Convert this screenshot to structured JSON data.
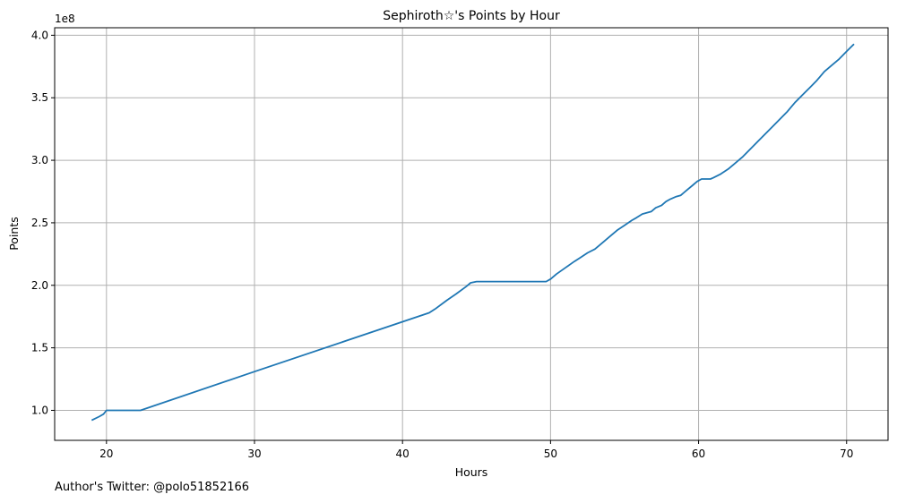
{
  "chart_data": {
    "type": "line",
    "title": "Sephiroth☆'s Points by Hour",
    "xlabel": "Hours",
    "ylabel": "Points",
    "y_offset_label": "1e8",
    "xlim": [
      16.5,
      72.8
    ],
    "ylim": [
      0.76,
      4.06
    ],
    "x_ticks": [
      20,
      30,
      40,
      50,
      60,
      70
    ],
    "y_ticks": [
      1.0,
      1.5,
      2.0,
      2.5,
      3.0,
      3.5,
      4.0
    ],
    "y_tick_labels": [
      "1.0",
      "1.5",
      "2.0",
      "2.5",
      "3.0",
      "3.5",
      "4.0"
    ],
    "grid": true,
    "line_color": "#1f77b4",
    "series": [
      {
        "x": [
          19.0,
          19.5,
          19.8,
          20.0,
          22.3,
          30.0,
          41.8,
          42.2,
          43.0,
          43.6,
          44.3,
          44.6,
          45.0,
          46.0,
          48.0,
          49.7,
          50.0,
          50.4,
          51.0,
          51.6,
          52.0,
          52.5,
          53.0,
          53.5,
          54.0,
          54.5,
          55.0,
          55.5,
          55.8,
          56.2,
          56.5,
          56.8,
          57.1,
          57.5,
          57.8,
          58.1,
          58.5,
          58.8,
          59.2,
          59.6,
          59.9,
          60.2,
          60.8,
          61.0,
          61.5,
          62.0,
          62.5,
          63.0,
          64.0,
          65.0,
          66.0,
          66.5,
          67.0,
          67.5,
          68.0,
          68.5,
          69.0,
          69.5,
          70.0,
          70.5
        ],
        "y": [
          0.92,
          0.95,
          0.97,
          1.0,
          1.0,
          1.31,
          1.78,
          1.81,
          1.88,
          1.93,
          1.99,
          2.02,
          2.03,
          2.03,
          2.03,
          2.03,
          2.05,
          2.09,
          2.14,
          2.19,
          2.22,
          2.26,
          2.29,
          2.34,
          2.39,
          2.44,
          2.48,
          2.52,
          2.54,
          2.57,
          2.58,
          2.59,
          2.62,
          2.64,
          2.67,
          2.69,
          2.71,
          2.72,
          2.76,
          2.8,
          2.83,
          2.85,
          2.85,
          2.86,
          2.89,
          2.93,
          2.98,
          3.03,
          3.15,
          3.27,
          3.39,
          3.46,
          3.52,
          3.58,
          3.64,
          3.71,
          3.76,
          3.81,
          3.87,
          3.93
        ]
      }
    ]
  },
  "footer": {
    "note": "Author's Twitter: @polo51852166"
  }
}
